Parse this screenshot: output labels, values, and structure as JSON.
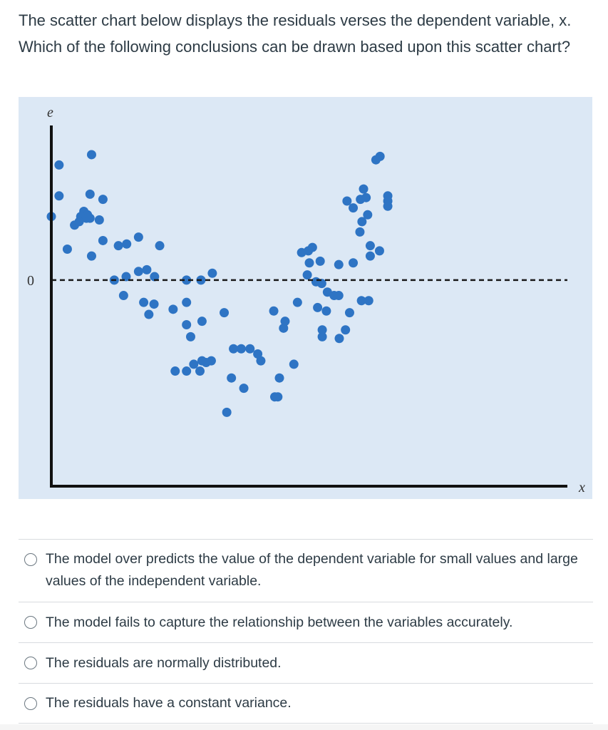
{
  "question": {
    "text": "The scatter chart below displays the residuals verses the dependent variable, x. Which of the following conclusions can be drawn based upon this scatter chart?"
  },
  "chart_data": {
    "type": "scatter",
    "title": "",
    "xlabel": "x",
    "ylabel": "e",
    "yticks": [
      "0"
    ],
    "reference_line": {
      "y": 0,
      "style": "dashed"
    },
    "xlim": [
      0,
      100
    ],
    "ylim": [
      -12,
      9
    ],
    "grid": false,
    "background_color": "#dce8f5",
    "point_color": "#2e74c4",
    "points": [
      {
        "x": 1.5,
        "y": 6.7
      },
      {
        "x": 1.5,
        "y": 4.9
      },
      {
        "x": 0,
        "y": 3.7
      },
      {
        "x": 7.8,
        "y": 7.3
      },
      {
        "x": 7.5,
        "y": 5.0
      },
      {
        "x": 10.0,
        "y": 4.7
      },
      {
        "x": 6.3,
        "y": 4.0
      },
      {
        "x": 7.0,
        "y": 3.8
      },
      {
        "x": 6.8,
        "y": 3.6
      },
      {
        "x": 5.7,
        "y": 3.7
      },
      {
        "x": 7.5,
        "y": 3.6
      },
      {
        "x": 9.3,
        "y": 3.5
      },
      {
        "x": 4.5,
        "y": 3.2
      },
      {
        "x": 5.4,
        "y": 3.4
      },
      {
        "x": 3.1,
        "y": 1.8
      },
      {
        "x": 7.8,
        "y": 1.4
      },
      {
        "x": 10.0,
        "y": 2.3
      },
      {
        "x": 13.0,
        "y": 2.0
      },
      {
        "x": 14.6,
        "y": 2.1
      },
      {
        "x": 16.9,
        "y": 2.5
      },
      {
        "x": 21.0,
        "y": 2.0
      },
      {
        "x": 12.2,
        "y": 0.0
      },
      {
        "x": 14.5,
        "y": 0.2
      },
      {
        "x": 16.9,
        "y": 0.5
      },
      {
        "x": 18.5,
        "y": 0.6
      },
      {
        "x": 20.0,
        "y": 0.2
      },
      {
        "x": 14.0,
        "y": -0.9
      },
      {
        "x": 17.9,
        "y": -1.3
      },
      {
        "x": 19.9,
        "y": -1.4
      },
      {
        "x": 18.9,
        "y": -2.0
      },
      {
        "x": 23.6,
        "y": -1.7
      },
      {
        "x": 26.2,
        "y": -1.3
      },
      {
        "x": 26.2,
        "y": -2.6
      },
      {
        "x": 27.0,
        "y": -3.3
      },
      {
        "x": 29.2,
        "y": -2.4
      },
      {
        "x": 26.2,
        "y": 0.0
      },
      {
        "x": 29.0,
        "y": 0.0
      },
      {
        "x": 31.2,
        "y": 0.4
      },
      {
        "x": 33.5,
        "y": -1.9
      },
      {
        "x": 24.0,
        "y": -5.3
      },
      {
        "x": 26.2,
        "y": -5.3
      },
      {
        "x": 27.6,
        "y": -4.9
      },
      {
        "x": 29.2,
        "y": -4.7
      },
      {
        "x": 28.8,
        "y": -5.3
      },
      {
        "x": 30.0,
        "y": -4.8
      },
      {
        "x": 31.0,
        "y": -4.7
      },
      {
        "x": 35.3,
        "y": -4.0
      },
      {
        "x": 36.8,
        "y": -4.0
      },
      {
        "x": 38.5,
        "y": -4.0
      },
      {
        "x": 40.0,
        "y": -4.3
      },
      {
        "x": 40.6,
        "y": -4.7
      },
      {
        "x": 34.9,
        "y": -5.7
      },
      {
        "x": 37.3,
        "y": -6.3
      },
      {
        "x": 34.0,
        "y": -7.7
      },
      {
        "x": 43.3,
        "y": -6.8
      },
      {
        "x": 43.9,
        "y": -6.8
      },
      {
        "x": 44.2,
        "y": -5.7
      },
      {
        "x": 47.0,
        "y": -4.9
      },
      {
        "x": 43.1,
        "y": -1.8
      },
      {
        "x": 45.0,
        "y": -2.8
      },
      {
        "x": 45.3,
        "y": -2.4
      },
      {
        "x": 47.7,
        "y": -1.3
      },
      {
        "x": 48.5,
        "y": 1.6
      },
      {
        "x": 49.8,
        "y": 1.7
      },
      {
        "x": 50.6,
        "y": 1.9
      },
      {
        "x": 52.1,
        "y": 1.1
      },
      {
        "x": 50.0,
        "y": 1.0
      },
      {
        "x": 55.7,
        "y": 0.9
      },
      {
        "x": 49.6,
        "y": 0.3
      },
      {
        "x": 51.3,
        "y": -0.1
      },
      {
        "x": 52.4,
        "y": -0.2
      },
      {
        "x": 53.5,
        "y": -0.7
      },
      {
        "x": 54.8,
        "y": -0.9
      },
      {
        "x": 55.7,
        "y": -0.9
      },
      {
        "x": 51.6,
        "y": -1.6
      },
      {
        "x": 53.3,
        "y": -1.8
      },
      {
        "x": 57.8,
        "y": -1.9
      },
      {
        "x": 60.1,
        "y": -1.2
      },
      {
        "x": 61.5,
        "y": -1.2
      },
      {
        "x": 52.5,
        "y": -2.9
      },
      {
        "x": 52.5,
        "y": -3.3
      },
      {
        "x": 55.8,
        "y": -3.4
      },
      {
        "x": 57.0,
        "y": -2.9
      },
      {
        "x": 57.3,
        "y": 4.6
      },
      {
        "x": 58.5,
        "y": 4.2
      },
      {
        "x": 59.9,
        "y": 4.7
      },
      {
        "x": 60.5,
        "y": 5.3
      },
      {
        "x": 61.0,
        "y": 4.8
      },
      {
        "x": 60.2,
        "y": 3.4
      },
      {
        "x": 61.3,
        "y": 3.8
      },
      {
        "x": 59.8,
        "y": 2.8
      },
      {
        "x": 61.8,
        "y": 2.0
      },
      {
        "x": 65.2,
        "y": 4.9
      },
      {
        "x": 65.2,
        "y": 4.6
      },
      {
        "x": 65.2,
        "y": 4.3
      },
      {
        "x": 63.7,
        "y": 7.2
      },
      {
        "x": 62.9,
        "y": 7.0
      },
      {
        "x": 61.8,
        "y": 1.4
      },
      {
        "x": 63.6,
        "y": 1.7
      },
      {
        "x": 58.5,
        "y": 1.0
      }
    ]
  },
  "answers": [
    {
      "label": "The model over predicts the value of the dependent variable for small values and large values of the independent variable."
    },
    {
      "label": "The model fails to capture the relationship between the variables accurately."
    },
    {
      "label": "The residuals are normally distributed."
    },
    {
      "label": "The residuals have a constant variance."
    }
  ]
}
